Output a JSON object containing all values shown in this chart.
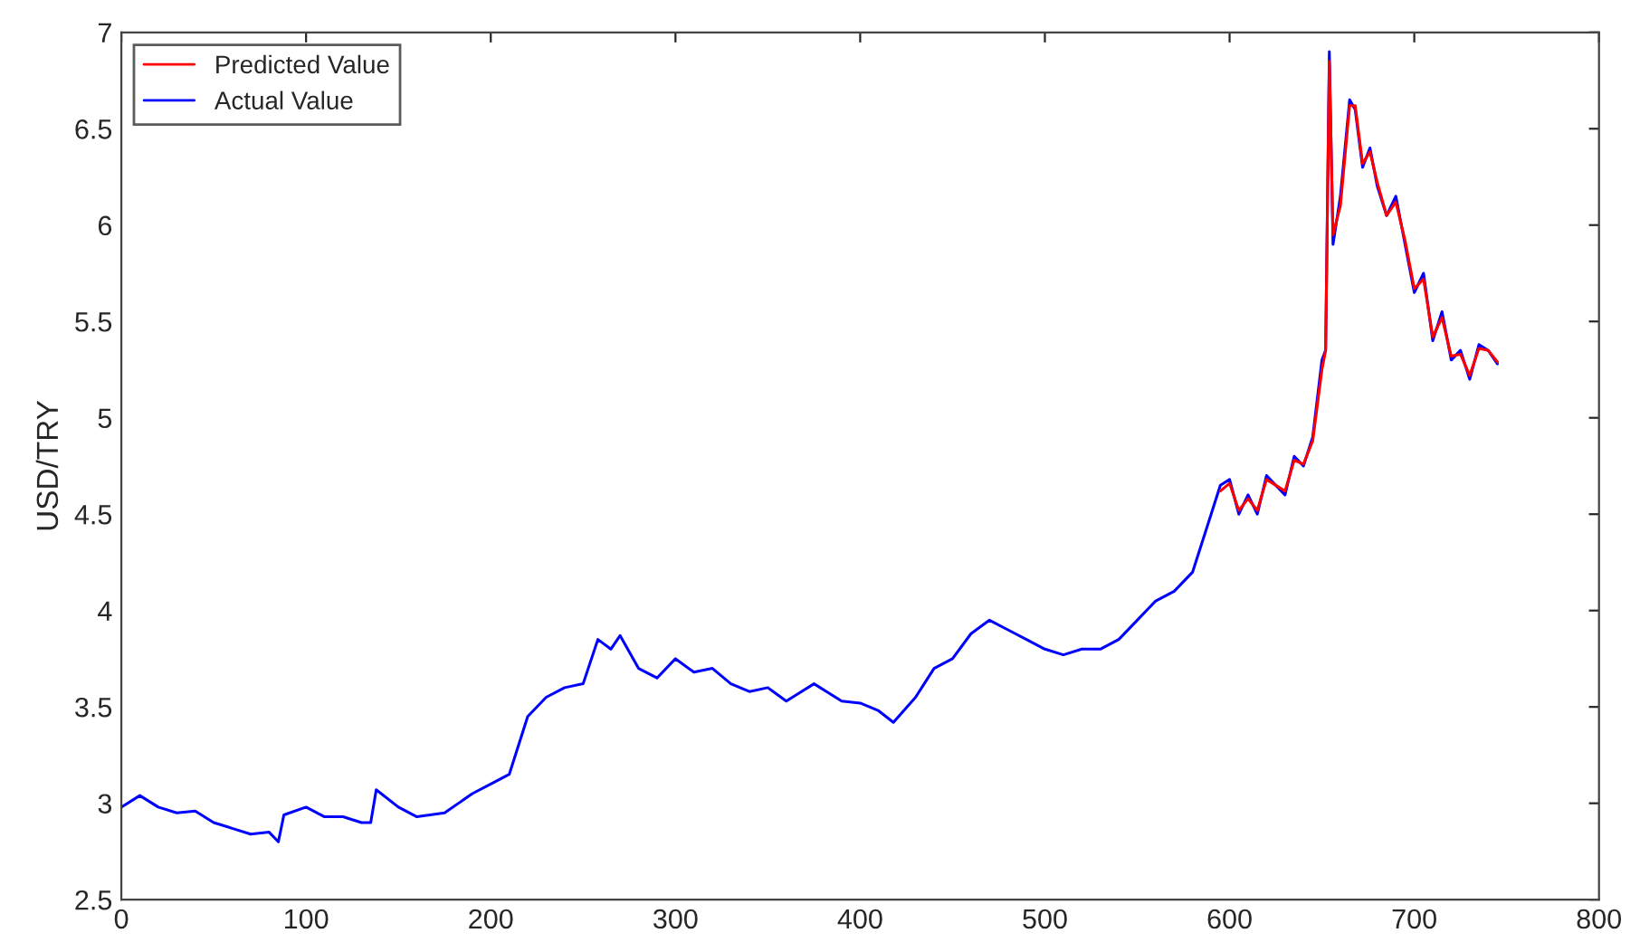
{
  "chart_data": {
    "type": "line",
    "ylabel": "USD/TRY",
    "xlim": [
      0,
      800
    ],
    "xticks": [
      0,
      100,
      200,
      300,
      400,
      500,
      600,
      700,
      800
    ],
    "ylim": [
      2.5,
      7
    ],
    "yticks": [
      2.5,
      3,
      3.5,
      4,
      4.5,
      5,
      5.5,
      6,
      6.5,
      7
    ],
    "grid": false,
    "legend": "top left",
    "series": [
      {
        "name": "Actual Value",
        "color": "#0000ff",
        "x": [
          0,
          10,
          20,
          30,
          40,
          50,
          60,
          70,
          80,
          85,
          88,
          100,
          110,
          120,
          130,
          135,
          138,
          150,
          160,
          175,
          190,
          200,
          210,
          220,
          230,
          240,
          250,
          258,
          265,
          270,
          280,
          290,
          300,
          310,
          320,
          330,
          340,
          350,
          360,
          375,
          390,
          400,
          410,
          418,
          430,
          440,
          450,
          460,
          470,
          480,
          490,
          500,
          510,
          520,
          530,
          540,
          550,
          560,
          570,
          580,
          590,
          595,
          600,
          605,
          610,
          615,
          620,
          630,
          635,
          640,
          645,
          650,
          652,
          654,
          656,
          660,
          665,
          668,
          672,
          676,
          680,
          685,
          690,
          695,
          700,
          705,
          710,
          715,
          720,
          725,
          730,
          735,
          740,
          745
        ],
        "values": [
          2.98,
          3.04,
          2.98,
          2.95,
          2.96,
          2.9,
          2.87,
          2.84,
          2.85,
          2.8,
          2.94,
          2.98,
          2.93,
          2.93,
          2.9,
          2.9,
          3.07,
          2.98,
          2.93,
          2.95,
          3.05,
          3.1,
          3.15,
          3.45,
          3.55,
          3.6,
          3.62,
          3.85,
          3.8,
          3.87,
          3.7,
          3.65,
          3.75,
          3.68,
          3.7,
          3.62,
          3.58,
          3.6,
          3.53,
          3.62,
          3.53,
          3.52,
          3.48,
          3.42,
          3.55,
          3.7,
          3.75,
          3.88,
          3.95,
          3.9,
          3.85,
          3.8,
          3.77,
          3.8,
          3.8,
          3.85,
          3.95,
          4.05,
          4.1,
          4.2,
          4.5,
          4.65,
          4.68,
          4.5,
          4.6,
          4.5,
          4.7,
          4.6,
          4.8,
          4.75,
          4.9,
          5.3,
          5.35,
          6.9,
          5.9,
          6.15,
          6.65,
          6.6,
          6.3,
          6.4,
          6.2,
          6.05,
          6.15,
          5.9,
          5.65,
          5.75,
          5.4,
          5.55,
          5.3,
          5.35,
          5.2,
          5.38,
          5.35,
          5.28
        ]
      },
      {
        "name": "Predicted Value",
        "color": "#ff0000",
        "x": [
          595,
          600,
          605,
          610,
          615,
          620,
          630,
          635,
          640,
          645,
          650,
          652,
          654,
          656,
          660,
          665,
          668,
          672,
          676,
          680,
          685,
          690,
          695,
          700,
          705,
          710,
          715,
          720,
          725,
          730,
          735,
          740,
          745
        ],
        "values": [
          4.62,
          4.66,
          4.52,
          4.58,
          4.52,
          4.68,
          4.62,
          4.78,
          4.76,
          4.88,
          5.25,
          5.35,
          6.85,
          5.95,
          6.1,
          6.62,
          6.62,
          6.32,
          6.38,
          6.22,
          6.05,
          6.12,
          5.92,
          5.67,
          5.72,
          5.42,
          5.52,
          5.32,
          5.33,
          5.22,
          5.36,
          5.35,
          5.29
        ]
      }
    ]
  }
}
